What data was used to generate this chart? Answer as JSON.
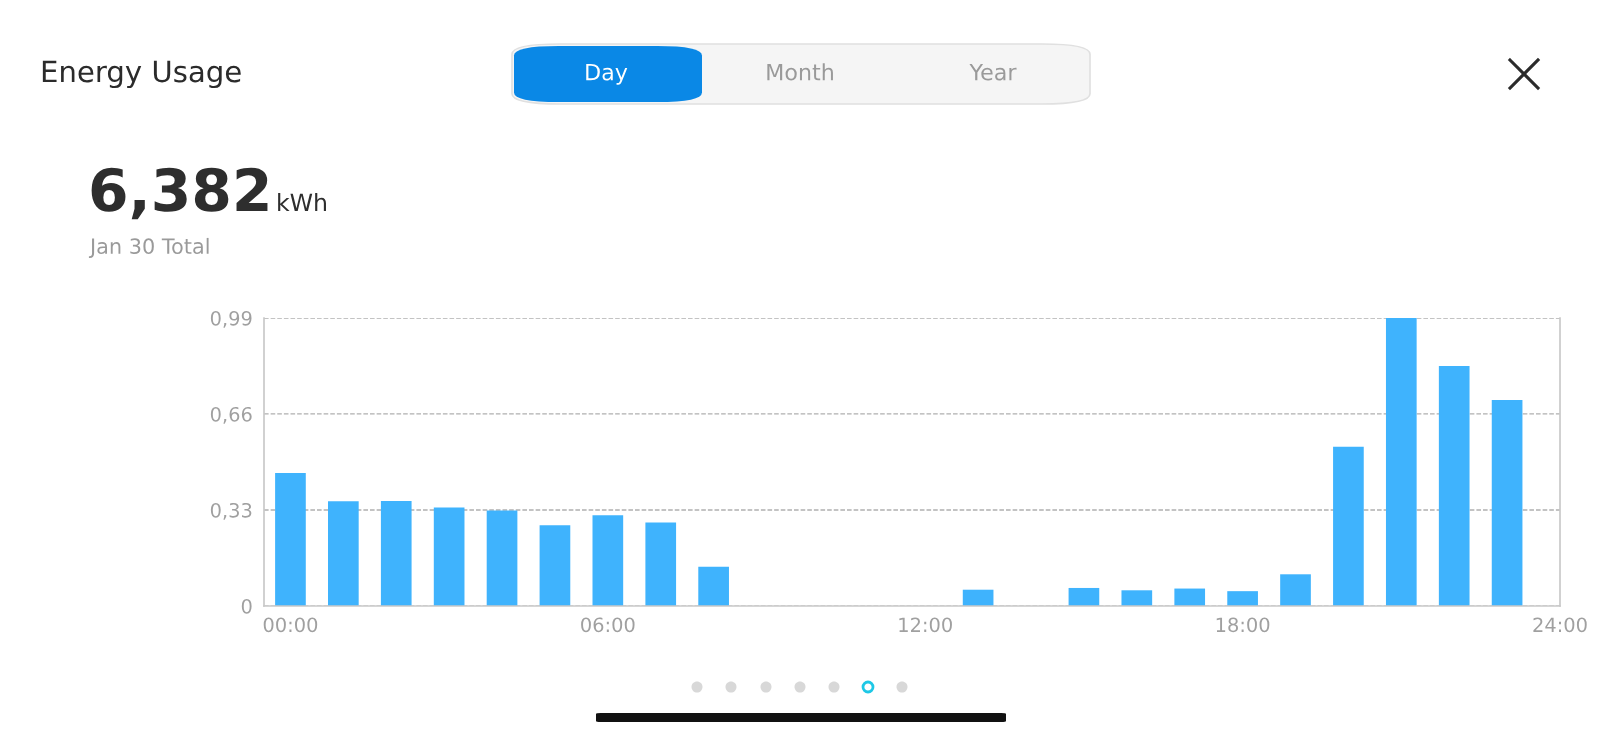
{
  "chart_data": {
    "type": "bar",
    "title": "Energy Usage",
    "annotations": [
      "Day",
      "Month",
      "Year",
      "6,382",
      "kWh",
      "Jan 30 Total"
    ],
    "x": [
      0,
      1,
      2,
      3,
      4,
      5,
      6,
      7,
      8,
      9,
      10,
      11,
      12,
      13,
      14,
      15,
      16,
      17,
      18,
      19,
      20,
      21,
      22,
      23
    ],
    "values": [
      0.457,
      0.36,
      0.361,
      0.339,
      0.328,
      0.278,
      0.312,
      0.287,
      0.135,
      0,
      0,
      0,
      0,
      0.056,
      0,
      0.062,
      0.054,
      0.06,
      0.051,
      0.109,
      0.547,
      0.99,
      0.825,
      0.708
    ],
    "color": "#3fb3fd",
    "xlim": [
      -0.5,
      24
    ],
    "xticks": [
      {
        "value": 0,
        "label": "00:00"
      },
      {
        "value": 6,
        "label": "06:00"
      },
      {
        "value": 12,
        "label": "12:00"
      },
      {
        "value": 18,
        "label": "18:00"
      },
      {
        "value": 24,
        "label": "24:00"
      }
    ],
    "ylim": [
      0,
      0.99
    ],
    "yticks": [
      0,
      {
        "value": 0.33,
        "label": "0,33"
      },
      {
        "value": 0.66,
        "label": "0,66"
      },
      {
        "value": 0.99,
        "label": "0,99"
      }
    ],
    "grid": "y",
    "line_style": "dashed"
  }
}
